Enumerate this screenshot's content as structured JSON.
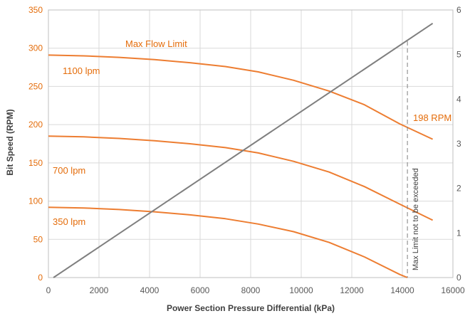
{
  "chart_data": {
    "type": "line",
    "title": "",
    "xlabel": "Power Section Pressure Differential (kPa)",
    "ylabel": "Bit Speed (RPM)",
    "xlim": [
      0,
      16000
    ],
    "ylim": [
      0,
      350
    ],
    "x_ticks": [
      "0",
      "2000",
      "4000",
      "6000",
      "8000",
      "10000",
      "12000",
      "14000",
      "16000"
    ],
    "y_ticks": [
      "0",
      "50",
      "100",
      "150",
      "200",
      "250",
      "300",
      "350"
    ],
    "y2_ticks": [
      "0",
      "1",
      "2",
      "3",
      "4",
      "5",
      "6"
    ],
    "y2lim": [
      0,
      6
    ],
    "grid": true,
    "colors": {
      "rpm_series": "#ed7d31",
      "torque_series": "#7f7f7f",
      "grid": "#d9d9d9"
    },
    "series": [
      {
        "name": "1100 lpm",
        "axis": "left",
        "x": [
          0,
          1400,
          2800,
          4200,
          5600,
          7000,
          8300,
          9700,
          11100,
          12500,
          13900,
          15200
        ],
        "y": [
          291,
          290,
          288,
          285,
          281,
          276,
          269,
          258,
          244,
          226,
          201,
          181
        ]
      },
      {
        "name": "700 lpm",
        "axis": "left",
        "x": [
          0,
          1400,
          2800,
          4200,
          5600,
          7000,
          8300,
          9700,
          11100,
          12500,
          13900,
          15200
        ],
        "y": [
          185,
          184,
          182,
          179,
          175,
          170,
          163,
          152,
          138,
          119,
          96,
          75
        ]
      },
      {
        "name": "350 lpm",
        "axis": "left",
        "x": [
          0,
          1400,
          2800,
          4200,
          5600,
          7000,
          8300,
          9700,
          11100,
          12500,
          13900,
          14200
        ],
        "y": [
          92,
          91,
          89,
          86,
          82,
          77,
          70,
          60,
          46,
          27,
          4,
          0
        ]
      },
      {
        "name": "",
        "axis": "right",
        "x": [
          200,
          15200
        ],
        "y": [
          0,
          5.7
        ]
      }
    ],
    "annotations": {
      "max_flow": "Max Flow Limit",
      "rpm_198": "198 RPM",
      "max_limit": "Max Limit not to be exceeded",
      "max_limit_x": 14200
    }
  }
}
